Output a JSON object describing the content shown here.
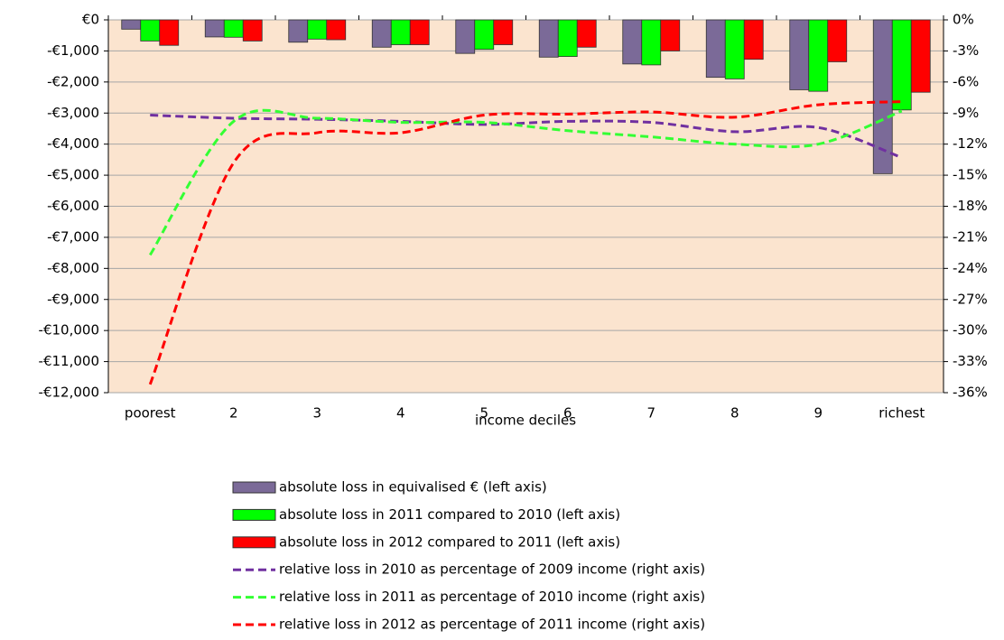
{
  "chart_data": {
    "type": "bar",
    "x_label": "income deciles",
    "categories": [
      "poorest",
      "2",
      "3",
      "4",
      "5",
      "6",
      "7",
      "8",
      "9",
      "richest"
    ],
    "ylim": [
      -12000,
      0
    ],
    "yticks": [
      {
        "value": 0,
        "label": "€0"
      },
      {
        "value": -1000,
        "label": "-€1,000"
      },
      {
        "value": -2000,
        "label": "-€2,000"
      },
      {
        "value": -3000,
        "label": "-€3,000"
      },
      {
        "value": -4000,
        "label": "-€4,000"
      },
      {
        "value": -5000,
        "label": "-€5,000"
      },
      {
        "value": -6000,
        "label": "-€6,000"
      },
      {
        "value": -7000,
        "label": "-€7,000"
      },
      {
        "value": -8000,
        "label": "-€8,000"
      },
      {
        "value": -9000,
        "label": "-€9,000"
      },
      {
        "value": -10000,
        "label": "-€10,000"
      },
      {
        "value": -11000,
        "label": "-€11,000"
      },
      {
        "value": -12000,
        "label": "-€12,000"
      }
    ],
    "y2lim": [
      -36,
      0
    ],
    "y2ticks": [
      {
        "value": 0,
        "label": "0%"
      },
      {
        "value": -3,
        "label": "-3%"
      },
      {
        "value": -6,
        "label": "-6%"
      },
      {
        "value": -9,
        "label": "-9%"
      },
      {
        "value": -12,
        "label": "-12%"
      },
      {
        "value": -15,
        "label": "-15%"
      },
      {
        "value": -18,
        "label": "-18%"
      },
      {
        "value": -21,
        "label": "-21%"
      },
      {
        "value": -24,
        "label": "-24%"
      },
      {
        "value": -27,
        "label": "-27%"
      },
      {
        "value": -30,
        "label": "-30%"
      },
      {
        "value": -33,
        "label": "-33%"
      },
      {
        "value": -36,
        "label": "-36%"
      }
    ],
    "grid": true,
    "series": [
      {
        "name": "absolute loss in equivalised € (left axis)",
        "type": "bar",
        "color": "#7b6a98",
        "values": [
          -300,
          -550,
          -720,
          -880,
          -1080,
          -1200,
          -1420,
          -1850,
          -2250,
          -4950
        ]
      },
      {
        "name": "absolute loss in 2011 compared to 2010 (left axis)",
        "type": "bar",
        "color": "#00ff00",
        "values": [
          -680,
          -560,
          -620,
          -800,
          -950,
          -1180,
          -1450,
          -1900,
          -2300,
          -2900
        ]
      },
      {
        "name": "absolute loss in 2012 compared to 2011 (left axis)",
        "type": "bar",
        "color": "#ff0000",
        "values": [
          -820,
          -680,
          -640,
          -800,
          -800,
          -880,
          -1000,
          -1270,
          -1350,
          -2330
        ]
      },
      {
        "name": "relative loss in 2010 as percentage of 2009 income  (right axis)",
        "type": "line",
        "axis": "y2",
        "color": "#7030a0",
        "values": [
          -9.2,
          -9.5,
          -9.6,
          -9.8,
          -10.1,
          -9.8,
          -9.9,
          -10.8,
          -10.4,
          -13.3
        ]
      },
      {
        "name": "relative loss in 2011 as percentage of 2010 income (right axis)",
        "type": "line",
        "axis": "y2",
        "color": "#33ff33",
        "values": [
          -22.7,
          -9.8,
          -9.5,
          -9.9,
          -9.9,
          -10.7,
          -11.3,
          -12.0,
          -12.0,
          -8.8
        ]
      },
      {
        "name": "relative loss in 2012 as percentage of 2011 income (right axis)",
        "type": "line",
        "axis": "y2",
        "color": "#ff0000",
        "values": [
          -35.2,
          -13.8,
          -10.9,
          -10.9,
          -9.2,
          -9.1,
          -8.9,
          -9.4,
          -8.2,
          -7.9
        ]
      }
    ]
  }
}
